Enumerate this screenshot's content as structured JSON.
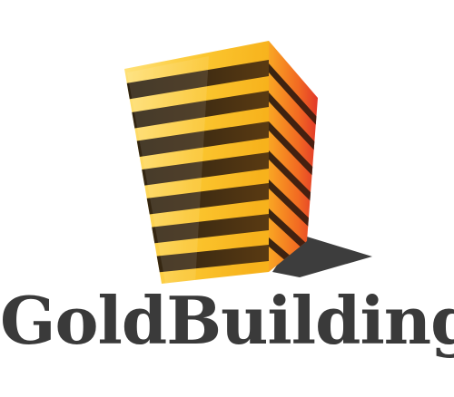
{
  "logo": {
    "wordmark": "GoldBuilding",
    "colors": {
      "gold_light": "#ffe27a",
      "gold": "#f9bd28",
      "orange": "#f58a1f",
      "red": "#e2382a",
      "stripe_dark": "#3b2a12",
      "shadow": "#3d3d3d",
      "text": "#3a3a3a"
    }
  }
}
